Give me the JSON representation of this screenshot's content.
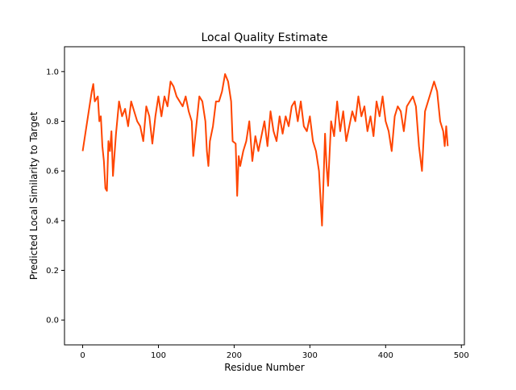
{
  "chart_data": {
    "type": "line",
    "title": "Local Quality Estimate",
    "xlabel": "Residue Number",
    "ylabel": "Predicted Local Similarity to Target",
    "x": [
      0,
      4,
      8,
      12,
      14,
      16,
      20,
      22,
      24,
      26,
      28,
      30,
      32,
      34,
      36,
      38,
      40,
      44,
      48,
      52,
      56,
      60,
      64,
      68,
      72,
      76,
      80,
      84,
      88,
      92,
      96,
      100,
      104,
      108,
      112,
      116,
      120,
      124,
      128,
      132,
      136,
      140,
      144,
      146,
      150,
      154,
      158,
      162,
      164,
      166,
      168,
      172,
      176,
      180,
      184,
      188,
      192,
      196,
      198,
      202,
      204,
      206,
      208,
      212,
      216,
      220,
      224,
      228,
      232,
      236,
      240,
      244,
      248,
      252,
      256,
      260,
      264,
      268,
      272,
      276,
      280,
      284,
      288,
      292,
      296,
      300,
      304,
      308,
      312,
      316,
      318,
      320,
      322,
      324,
      328,
      332,
      336,
      340,
      344,
      348,
      352,
      356,
      360,
      364,
      368,
      372,
      376,
      380,
      384,
      388,
      392,
      396,
      400,
      404,
      408,
      412,
      416,
      420,
      424,
      428,
      432,
      436,
      440,
      444,
      448,
      452,
      456,
      460,
      464,
      468,
      472,
      476,
      478,
      480,
      482
    ],
    "values": [
      0.68,
      0.76,
      0.84,
      0.92,
      0.95,
      0.88,
      0.9,
      0.8,
      0.82,
      0.7,
      0.64,
      0.53,
      0.52,
      0.72,
      0.68,
      0.76,
      0.58,
      0.75,
      0.88,
      0.82,
      0.85,
      0.78,
      0.88,
      0.84,
      0.8,
      0.78,
      0.72,
      0.86,
      0.82,
      0.71,
      0.82,
      0.9,
      0.82,
      0.9,
      0.86,
      0.96,
      0.94,
      0.9,
      0.88,
      0.86,
      0.9,
      0.84,
      0.8,
      0.66,
      0.78,
      0.9,
      0.88,
      0.8,
      0.68,
      0.62,
      0.72,
      0.78,
      0.88,
      0.88,
      0.92,
      0.99,
      0.96,
      0.88,
      0.72,
      0.71,
      0.5,
      0.66,
      0.62,
      0.68,
      0.72,
      0.8,
      0.64,
      0.74,
      0.68,
      0.74,
      0.8,
      0.7,
      0.84,
      0.76,
      0.72,
      0.82,
      0.75,
      0.82,
      0.78,
      0.86,
      0.88,
      0.8,
      0.88,
      0.78,
      0.76,
      0.82,
      0.72,
      0.68,
      0.6,
      0.38,
      0.56,
      0.75,
      0.62,
      0.54,
      0.8,
      0.74,
      0.88,
      0.76,
      0.84,
      0.72,
      0.78,
      0.84,
      0.8,
      0.9,
      0.82,
      0.86,
      0.76,
      0.82,
      0.74,
      0.88,
      0.82,
      0.9,
      0.8,
      0.76,
      0.68,
      0.82,
      0.86,
      0.84,
      0.76,
      0.86,
      0.88,
      0.9,
      0.86,
      0.7,
      0.6,
      0.84,
      0.88,
      0.92,
      0.96,
      0.92,
      0.8,
      0.76,
      0.7,
      0.78,
      0.7
    ],
    "color": "#ff4500",
    "xlim": [
      -24,
      504
    ],
    "xticks": [
      0,
      100,
      200,
      300,
      400,
      500
    ],
    "ylim": [
      -0.1,
      1.1
    ],
    "yticks": [
      {
        "value": 0,
        "label": "0.0"
      },
      0.2,
      0.4,
      0.6,
      0.8,
      {
        "value": 1,
        "label": "1.0"
      }
    ],
    "grid": false
  }
}
